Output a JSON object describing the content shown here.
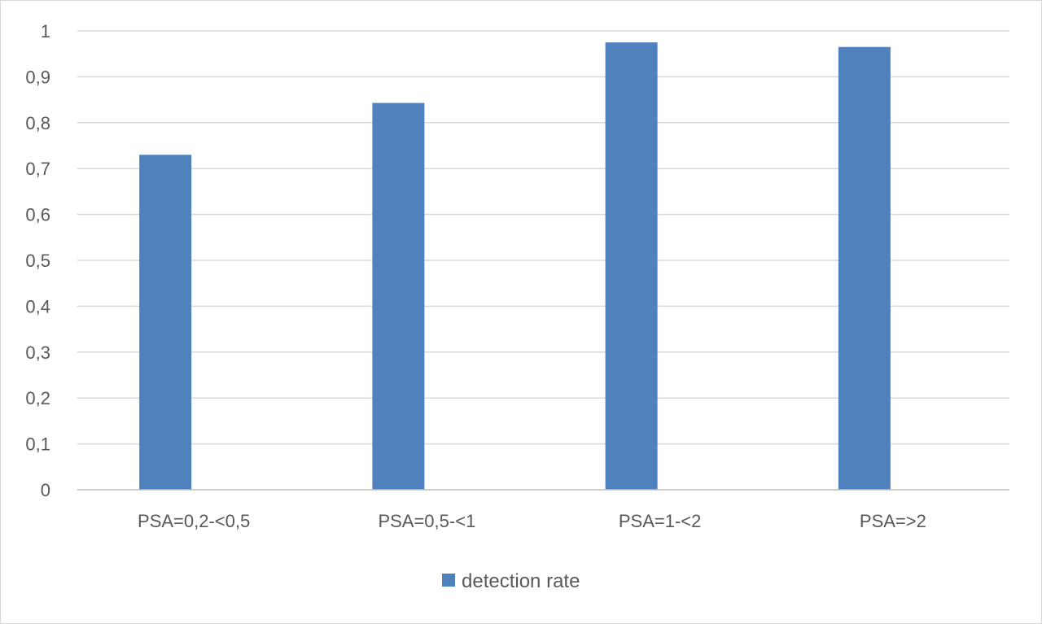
{
  "chart_data": {
    "type": "bar",
    "title": "",
    "xlabel": "",
    "ylabel": "",
    "categories": [
      "PSA=0,2-<0,5",
      "PSA=0,5-<1",
      "PSA=1-<2",
      "PSA=>2"
    ],
    "series": [
      {
        "name": "detection rate",
        "values": [
          0.73,
          0.843,
          0.975,
          0.965
        ],
        "color": "#4f81bd"
      }
    ],
    "ylim": [
      0,
      1
    ],
    "yticks": [
      "0",
      "0,1",
      "0,2",
      "0,3",
      "0,4",
      "0,5",
      "0,6",
      "0,7",
      "0,8",
      "0,9",
      "1"
    ],
    "grid": true,
    "legend_position": "bottom",
    "colors": {
      "grid": "#d9d9d9",
      "axis": "#bfbfbf",
      "text": "#595959"
    }
  }
}
